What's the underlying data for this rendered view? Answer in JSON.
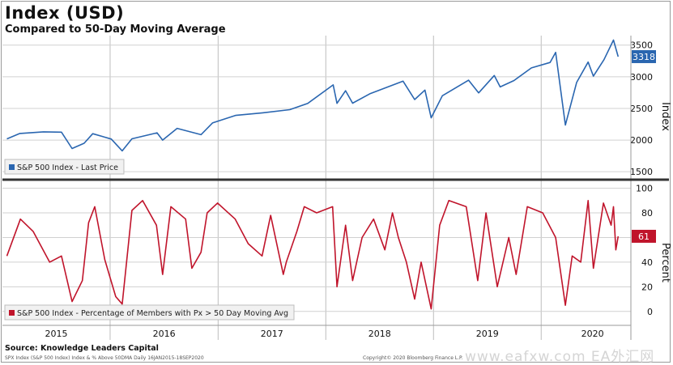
{
  "title": "Index (USD)",
  "subtitle": "Compared to 50-Day Moving Average",
  "source": "Source: Knowledge Leaders Capital",
  "footer_left": "SPX Index (S&P 500 Index) Index & % Above 50DMA  Daily 16JAN2015-18SEP2020",
  "footer_right": "Copyright© 2020 Bloomberg Finance L.P.",
  "watermark": "www.eafxw.com  EA外汇网",
  "chart_data": [
    {
      "type": "line",
      "title": "Index (USD)",
      "ylabel": "Index",
      "ylim": [
        1400,
        3650
      ],
      "yticks": [
        "1500",
        "2000",
        "2500",
        "3000",
        "3500"
      ],
      "xticks": [
        "2015",
        "2016",
        "2017",
        "2018",
        "2019",
        "2020"
      ],
      "legend": "S&P 500 Index - Last Price",
      "last_value_label": "3318",
      "color": "#2a66b0",
      "series": [
        {
          "name": "S&P 500 Index - Last Price",
          "x": [
            "2015-01-16",
            "2015-03-01",
            "2015-05-20",
            "2015-07-20",
            "2015-08-25",
            "2015-10-05",
            "2015-11-03",
            "2016-01-05",
            "2016-02-11",
            "2016-03-15",
            "2016-06-08",
            "2016-06-27",
            "2016-08-15",
            "2016-11-04",
            "2016-12-13",
            "2017-03-01",
            "2017-06-01",
            "2017-09-01",
            "2017-11-01",
            "2018-01-26",
            "2018-02-08",
            "2018-03-09",
            "2018-04-02",
            "2018-06-01",
            "2018-09-20",
            "2018-10-29",
            "2018-12-03",
            "2018-12-24",
            "2019-01-31",
            "2019-04-30",
            "2019-06-03",
            "2019-07-26",
            "2019-08-15",
            "2019-10-01",
            "2019-11-29",
            "2020-01-31",
            "2020-02-19",
            "2020-03-23",
            "2020-04-30",
            "2020-06-08",
            "2020-06-26",
            "2020-08-01",
            "2020-09-02",
            "2020-09-18"
          ],
          "values": [
            2019,
            2105,
            2130,
            2125,
            1867,
            1950,
            2100,
            2016,
            1829,
            2020,
            2115,
            2000,
            2185,
            2085,
            2270,
            2390,
            2430,
            2480,
            2580,
            2872,
            2580,
            2780,
            2582,
            2735,
            2930,
            2640,
            2790,
            2351,
            2700,
            2945,
            2745,
            3020,
            2840,
            2940,
            3140,
            3225,
            3386,
            2237,
            2910,
            3232,
            3010,
            3270,
            3580,
            3318
          ]
        }
      ]
    },
    {
      "type": "line",
      "ylabel": "Percent",
      "ylim": [
        -10,
        105
      ],
      "yticks": [
        "0",
        "20",
        "40",
        "60",
        "80",
        "100"
      ],
      "legend": "S&P 500 Index - Percentage of Members with Px > 50 Day Moving Avg",
      "last_value_label": "61",
      "color": "#c0142b",
      "series": [
        {
          "name": "S&P 500 Index - Percentage of Members with Px > 50 Day Moving Avg",
          "x": [
            "2015-01-16",
            "2015-03-03",
            "2015-04-15",
            "2015-06-10",
            "2015-07-20",
            "2015-08-25",
            "2015-09-29",
            "2015-10-20",
            "2015-11-10",
            "2015-12-14",
            "2016-01-20",
            "2016-02-11",
            "2016-03-15",
            "2016-04-20",
            "2016-06-06",
            "2016-06-27",
            "2016-07-25",
            "2016-09-13",
            "2016-10-04",
            "2016-11-04",
            "2016-11-25",
            "2016-12-30",
            "2017-02-28",
            "2017-04-13",
            "2017-05-30",
            "2017-06-28",
            "2017-08-10",
            "2017-08-20",
            "2017-09-25",
            "2017-10-20",
            "2017-12-01",
            "2018-01-24",
            "2018-02-08",
            "2018-03-09",
            "2018-04-02",
            "2018-05-04",
            "2018-06-12",
            "2018-07-20",
            "2018-08-15",
            "2018-09-04",
            "2018-10-01",
            "2018-10-29",
            "2018-11-20",
            "2018-12-24",
            "2019-01-22",
            "2019-02-22",
            "2019-04-22",
            "2019-05-31",
            "2019-06-28",
            "2019-08-05",
            "2019-09-13",
            "2019-10-08",
            "2019-11-15",
            "2020-01-06",
            "2020-02-19",
            "2020-03-23",
            "2020-04-15",
            "2020-05-14",
            "2020-06-08",
            "2020-06-26",
            "2020-07-30",
            "2020-08-25",
            "2020-09-02",
            "2020-09-10",
            "2020-09-18"
          ],
          "values": [
            45,
            75,
            65,
            40,
            45,
            8,
            25,
            72,
            85,
            42,
            12,
            6,
            82,
            90,
            70,
            30,
            85,
            75,
            35,
            48,
            80,
            88,
            75,
            55,
            45,
            78,
            30,
            40,
            65,
            85,
            80,
            85,
            20,
            70,
            25,
            60,
            75,
            50,
            80,
            60,
            40,
            10,
            40,
            2,
            70,
            90,
            85,
            25,
            80,
            20,
            60,
            30,
            85,
            80,
            60,
            5,
            45,
            40,
            90,
            35,
            88,
            70,
            85,
            50,
            61
          ]
        }
      ]
    }
  ]
}
